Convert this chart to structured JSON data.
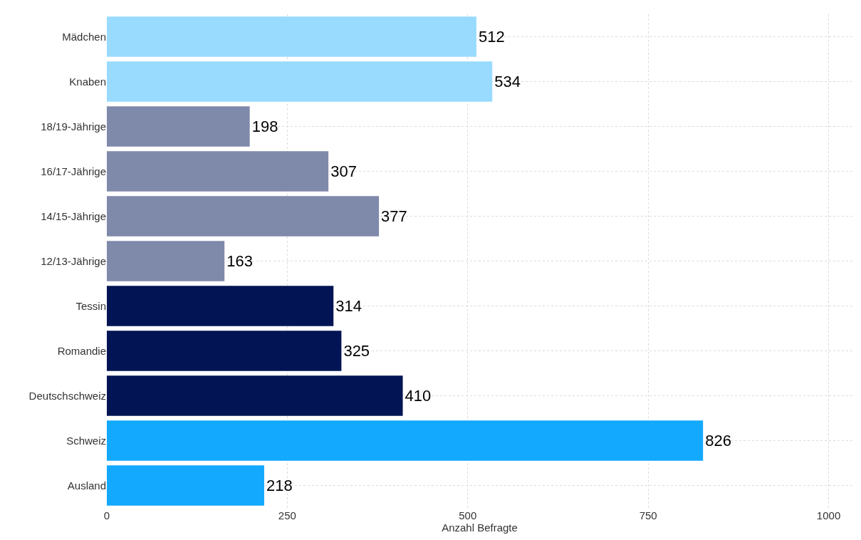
{
  "chart_data": {
    "type": "bar",
    "orientation": "horizontal",
    "xlabel": "Anzahl Befragte",
    "categories": [
      "Mädchen",
      "Knaben",
      "18/19-Jährige",
      "16/17-Jährige",
      "14/15-Jährige",
      "12/13-Jährige",
      "Tessin",
      "Romandie",
      "Deutschschweiz",
      "Schweiz",
      "Ausland"
    ],
    "values": [
      512,
      534,
      198,
      307,
      377,
      163,
      314,
      325,
      410,
      826,
      218
    ],
    "colors": [
      "#99dbff",
      "#99dbff",
      "#7f89aa",
      "#7f89aa",
      "#7f89aa",
      "#7f89aa",
      "#021454",
      "#021454",
      "#021454",
      "#12a9ff",
      "#12a9ff"
    ],
    "xlim": [
      0,
      1033
    ],
    "xticks": [
      0,
      250,
      500,
      750,
      1000
    ],
    "grid": true,
    "data_labels": true
  }
}
